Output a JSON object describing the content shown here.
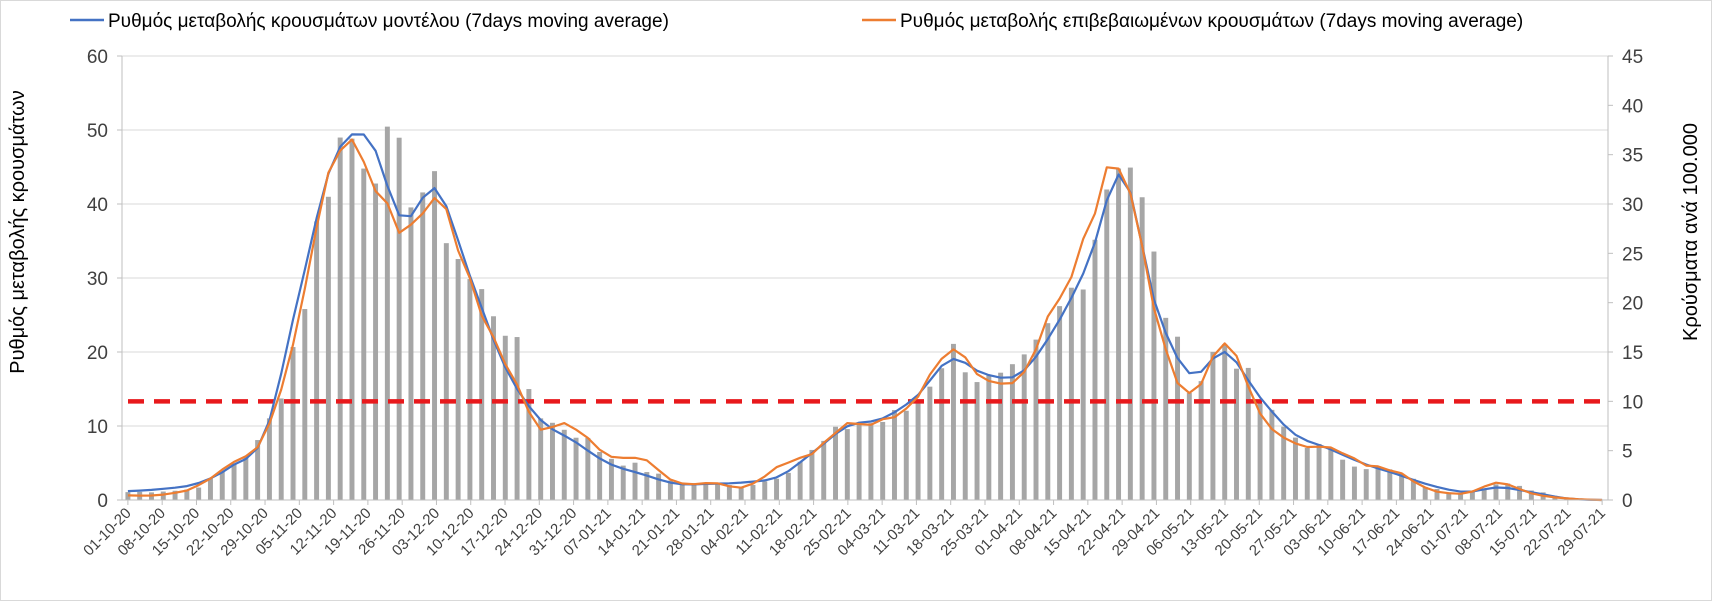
{
  "chart_data": {
    "type": "bar+line",
    "left_axis": {
      "label": "Ρυθμός μεταβολής κρουσμάτων",
      "min": 0,
      "max": 60,
      "ticks": [
        0,
        10,
        20,
        30,
        40,
        50,
        60
      ]
    },
    "right_axis": {
      "label": "Κρούσματα ανά 100.000",
      "min": 0,
      "max": 45,
      "ticks": [
        0,
        5,
        10,
        15,
        20,
        25,
        30,
        35,
        40,
        45
      ]
    },
    "x_tick_labels": [
      "01-10-20",
      "08-10-20",
      "15-10-20",
      "22-10-20",
      "29-10-20",
      "05-11-20",
      "12-11-20",
      "19-11-20",
      "26-11-20",
      "03-12-20",
      "10-12-20",
      "17-12-20",
      "24-12-20",
      "31-12-20",
      "07-01-21",
      "14-01-21",
      "21-01-21",
      "28-01-21",
      "04-02-21",
      "11-02-21",
      "18-02-21",
      "25-02-21",
      "04-03-21",
      "11-03-21",
      "18-03-21",
      "25-03-21",
      "01-04-21",
      "08-04-21",
      "15-04-21",
      "22-04-21",
      "29-04-21",
      "06-05-21",
      "13-05-21",
      "20-05-21",
      "27-05-21",
      "03-06-21",
      "10-06-21",
      "17-06-21",
      "24-06-21",
      "01-07-21",
      "08-07-21",
      "15-07-21",
      "22-07-21",
      "29-07-21"
    ],
    "x_day_count": 126,
    "threshold": {
      "axis": "right",
      "value": 10,
      "color": "#e8191c",
      "style": "dashed"
    },
    "bars": {
      "name": "",
      "axis": "right",
      "color": "#a6a6a6",
      "weekly_values": [
        0.8,
        0.9,
        1.3,
        3.5,
        7,
        18,
        35,
        36,
        33,
        30,
        22,
        18,
        9,
        7,
        4.5,
        3.2,
        1.8,
        1.6,
        1.5,
        2.5,
        5,
        7.5,
        8,
        10,
        15,
        12,
        13,
        18,
        25,
        36,
        23,
        12,
        16,
        10,
        6.5,
        5,
        3.5,
        2.8,
        1.2,
        0.8,
        1.6,
        1.0,
        0.2,
        0.0
      ]
    },
    "series": [
      {
        "name": "Ρυθμός μεταβολής κρουσμάτων μοντέλου (7days moving average)",
        "axis": "left",
        "color": "#4472c4",
        "weekly_values": [
          1.2,
          1.5,
          2.2,
          4.5,
          9,
          28,
          46,
          49,
          38,
          42,
          30,
          18,
          11,
          8,
          5.0,
          3.5,
          2.2,
          2.2,
          2.4,
          3.2,
          6.5,
          10,
          11,
          14,
          19,
          17,
          17,
          23,
          32,
          44,
          26,
          17,
          20,
          14,
          9,
          7,
          5.0,
          3.5,
          2.0,
          1.1,
          1.7,
          1.0,
          0.2,
          0.0
        ]
      },
      {
        "name": "Ρυθμός μεταβολής επιβεβαιωμένων κρουσμάτων (7days moving average)",
        "axis": "left",
        "color": "#ed7d31",
        "weekly_values": [
          0.6,
          0.7,
          1.8,
          5.0,
          8.5,
          25,
          46,
          45,
          36,
          40,
          29,
          19,
          10,
          10,
          6.0,
          5.5,
          2.4,
          2.3,
          1.8,
          4.5,
          6.5,
          10.5,
          10.5,
          14,
          20,
          16,
          16,
          26,
          36,
          46,
          25,
          14,
          22,
          12,
          8,
          7,
          5.0,
          3.8,
          1.4,
          0.9,
          2.3,
          0.8,
          0.2,
          0.0
        ]
      }
    ],
    "legend_position": "top",
    "grid": true
  },
  "colors": {
    "grid": "#d9d9d9",
    "axis": "#bfbfbf",
    "bar": "#a6a6a6",
    "model": "#4472c4",
    "confirmed": "#ed7d31",
    "threshold": "#e8191c"
  }
}
